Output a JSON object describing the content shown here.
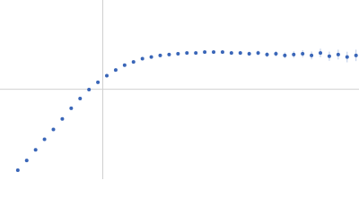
{
  "chart_data": {
    "type": "scatter",
    "color": "#3a66b8",
    "x": [
      0.3,
      0.45,
      0.6,
      0.75,
      0.9,
      1.05,
      1.2,
      1.35,
      1.5,
      1.65,
      1.8,
      1.95,
      2.1,
      2.25,
      2.4,
      2.55,
      2.7,
      2.85,
      3.0,
      3.15,
      3.3,
      3.45,
      3.6,
      3.75,
      3.9,
      4.05,
      4.2,
      4.35,
      4.5,
      4.65,
      4.8,
      4.95,
      5.1,
      5.25,
      5.4,
      5.55,
      5.7,
      5.85,
      6.0
    ],
    "values": [
      0.11,
      0.23,
      0.36,
      0.49,
      0.61,
      0.74,
      0.87,
      0.99,
      1.1,
      1.19,
      1.27,
      1.34,
      1.4,
      1.44,
      1.48,
      1.5,
      1.52,
      1.53,
      1.54,
      1.55,
      1.55,
      1.56,
      1.56,
      1.56,
      1.55,
      1.55,
      1.54,
      1.55,
      1.53,
      1.54,
      1.52,
      1.53,
      1.54,
      1.52,
      1.55,
      1.51,
      1.53,
      1.5,
      1.52
    ],
    "errors": [
      0.005,
      0.005,
      0.005,
      0.005,
      0.005,
      0.005,
      0.006,
      0.006,
      0.006,
      0.007,
      0.007,
      0.008,
      0.008,
      0.009,
      0.01,
      0.01,
      0.011,
      0.012,
      0.013,
      0.014,
      0.015,
      0.016,
      0.018,
      0.02,
      0.022,
      0.024,
      0.026,
      0.028,
      0.03,
      0.033,
      0.036,
      0.04,
      0.044,
      0.048,
      0.052,
      0.056,
      0.06,
      0.065,
      0.07
    ],
    "xlim": [
      0,
      6.05
    ],
    "ylim": [
      0,
      2.2
    ],
    "vlines": [
      1.732
    ],
    "hlines": [
      1.104
    ],
    "guide_color": "#d0d0d0"
  }
}
